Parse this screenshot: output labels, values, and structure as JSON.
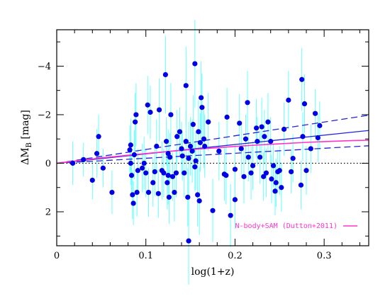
{
  "chart_data": {
    "type": "scatter",
    "xlabel": "log(1+z)",
    "ylabel": "ΔM_B [mag]",
    "ylabel_main": "ΔM",
    "ylabel_sub": "B",
    "ylabel_unit": "[mag]",
    "xlim": [
      0,
      0.35
    ],
    "ylim": [
      3.4,
      -5.5
    ],
    "y_inverted": true,
    "xticks": [
      0,
      0.1,
      0.2,
      0.3
    ],
    "xtick_labels": [
      "0",
      "0.1",
      "0.2",
      "0.3"
    ],
    "yticks": [
      -4,
      -2,
      0,
      2
    ],
    "ytick_labels": [
      "−4",
      "−2",
      "0",
      "2"
    ],
    "grid": false,
    "legend_placement": "bottom-right",
    "colors": {
      "points": "#0000e6",
      "errorbars": "#66ffff",
      "fit": "#2222dd",
      "model": "#ff33cc",
      "zero_line": "#000000"
    },
    "series": [
      {
        "kind": "points",
        "x": [
          0.018,
          0.03,
          0.04,
          0.045,
          0.047,
          0.052,
          0.062,
          0.082,
          0.083,
          0.083,
          0.084,
          0.085,
          0.086,
          0.087,
          0.088,
          0.089,
          0.09,
          0.091,
          0.096,
          0.098,
          0.1,
          0.102,
          0.103,
          0.105,
          0.108,
          0.11,
          0.112,
          0.114,
          0.115,
          0.118,
          0.12,
          0.122,
          0.123,
          0.124,
          0.125,
          0.125,
          0.126,
          0.127,
          0.128,
          0.13,
          0.132,
          0.134,
          0.135,
          0.138,
          0.14,
          0.141,
          0.143,
          0.145,
          0.145,
          0.147,
          0.148,
          0.148,
          0.15,
          0.152,
          0.153,
          0.155,
          0.155,
          0.156,
          0.158,
          0.159,
          0.16,
          0.161,
          0.162,
          0.163,
          0.165,
          0.166,
          0.17,
          0.175,
          0.182,
          0.188,
          0.19,
          0.191,
          0.195,
          0.2,
          0.2,
          0.205,
          0.207,
          0.21,
          0.212,
          0.214,
          0.215,
          0.218,
          0.22,
          0.224,
          0.225,
          0.228,
          0.23,
          0.232,
          0.233,
          0.235,
          0.237,
          0.24,
          0.241,
          0.243,
          0.245,
          0.246,
          0.248,
          0.25,
          0.252,
          0.255,
          0.26,
          0.263,
          0.265,
          0.274,
          0.275,
          0.276,
          0.278,
          0.28,
          0.285,
          0.29,
          0.293,
          0.295
        ],
        "y": [
          0.0,
          -0.15,
          0.7,
          -0.4,
          -1.1,
          0.2,
          1.2,
          -0.55,
          -0.75,
          0.0,
          0.5,
          1.3,
          1.65,
          -0.35,
          -1.7,
          -2.0,
          1.2,
          0.3,
          0.2,
          0.0,
          0.4,
          -2.4,
          1.2,
          -2.1,
          0.8,
          0.35,
          -0.7,
          1.25,
          -2.2,
          0.3,
          0.4,
          -3.65,
          -0.9,
          0.8,
          0.5,
          -0.4,
          1.4,
          -0.25,
          -2.0,
          0.55,
          1.2,
          0.4,
          -1.1,
          -1.3,
          -0.6,
          -0.3,
          0.4,
          -0.9,
          -3.2,
          1.4,
          -0.2,
          3.2,
          -0.7,
          -0.5,
          -1.6,
          -4.1,
          0.15,
          -0.1,
          1.3,
          -1.3,
          1.55,
          -0.85,
          -2.7,
          -2.3,
          -1.0,
          -0.7,
          -1.7,
          1.95,
          -0.5,
          0.45,
          0.5,
          -1.9,
          2.15,
          1.5,
          0.25,
          -1.65,
          -0.6,
          0.55,
          -1.0,
          -2.5,
          -0.25,
          0.4,
          0.1,
          -1.45,
          -0.9,
          -0.25,
          -1.5,
          0.55,
          -1.1,
          0.4,
          -1.7,
          -0.9,
          0.65,
          0.1,
          1.15,
          0.8,
          0.35,
          0.3,
          1.0,
          -1.4,
          -2.6,
          0.35,
          -0.2,
          0.9,
          -3.45,
          -1.1,
          -2.45,
          0.3,
          -0.6,
          -2.05,
          -1.05,
          -1.55
        ],
        "yerr": [
          0.9,
          0.7,
          0.8,
          1.0,
          0.9,
          0.8,
          0.9,
          1.0,
          1.1,
          0.9,
          0.8,
          1.0,
          0.9,
          1.0,
          1.2,
          1.3,
          1.0,
          0.9,
          1.0,
          1.1,
          1.0,
          1.2,
          1.0,
          1.1,
          1.0,
          1.0,
          1.1,
          1.0,
          1.3,
          1.2,
          1.0,
          1.6,
          1.0,
          1.1,
          1.2,
          1.0,
          1.1,
          1.0,
          1.3,
          1.0,
          1.2,
          1.0,
          1.1,
          1.0,
          1.1,
          1.0,
          1.0,
          1.3,
          1.6,
          1.2,
          1.5,
          1.8,
          1.2,
          1.3,
          1.2,
          1.8,
          1.0,
          1.2,
          1.3,
          1.3,
          1.4,
          1.2,
          1.5,
          1.4,
          1.2,
          1.3,
          1.2,
          1.3,
          1.2,
          1.1,
          1.2,
          1.2,
          1.3,
          1.2,
          1.0,
          1.2,
          1.1,
          1.1,
          1.0,
          1.3,
          1.0,
          1.1,
          1.0,
          1.2,
          1.0,
          1.1,
          1.2,
          1.0,
          1.1,
          1.0,
          1.2,
          1.0,
          1.0,
          0.9,
          1.0,
          1.0,
          0.9,
          1.0,
          1.0,
          1.1,
          1.2,
          0.9,
          1.0,
          1.0,
          1.3,
          1.0,
          1.2,
          1.0,
          1.0,
          1.0,
          1.0,
          1.0
        ]
      },
      {
        "kind": "line",
        "style": "solid",
        "color_key": "fit",
        "x": [
          0,
          0.35
        ],
        "y": [
          0,
          -1.35
        ]
      },
      {
        "kind": "line",
        "style": "dashed",
        "color_key": "fit",
        "x": [
          0,
          0.35
        ],
        "y": [
          0,
          -1.98
        ]
      },
      {
        "kind": "line",
        "style": "dashed",
        "color_key": "fit",
        "x": [
          0,
          0.35
        ],
        "y": [
          0,
          -0.72
        ]
      },
      {
        "kind": "line",
        "style": "dotted",
        "color_key": "zero_line",
        "x": [
          0,
          0.35
        ],
        "y": [
          0,
          0
        ]
      },
      {
        "kind": "curve",
        "style": "solid",
        "color_key": "model",
        "name": "N-body+SAM (Dutton+2011)",
        "x": [
          0,
          0.02,
          0.05,
          0.08,
          0.1,
          0.12,
          0.15,
          0.18,
          0.2,
          0.22,
          0.25,
          0.28,
          0.3,
          0.33,
          0.35
        ],
        "y": [
          0,
          -0.09,
          -0.22,
          -0.33,
          -0.4,
          -0.47,
          -0.56,
          -0.64,
          -0.69,
          -0.74,
          -0.8,
          -0.86,
          -0.89,
          -0.93,
          -0.95
        ]
      }
    ],
    "legend": [
      {
        "label": "N-body+SAM (Dutton+2011)",
        "color_key": "model"
      }
    ]
  }
}
